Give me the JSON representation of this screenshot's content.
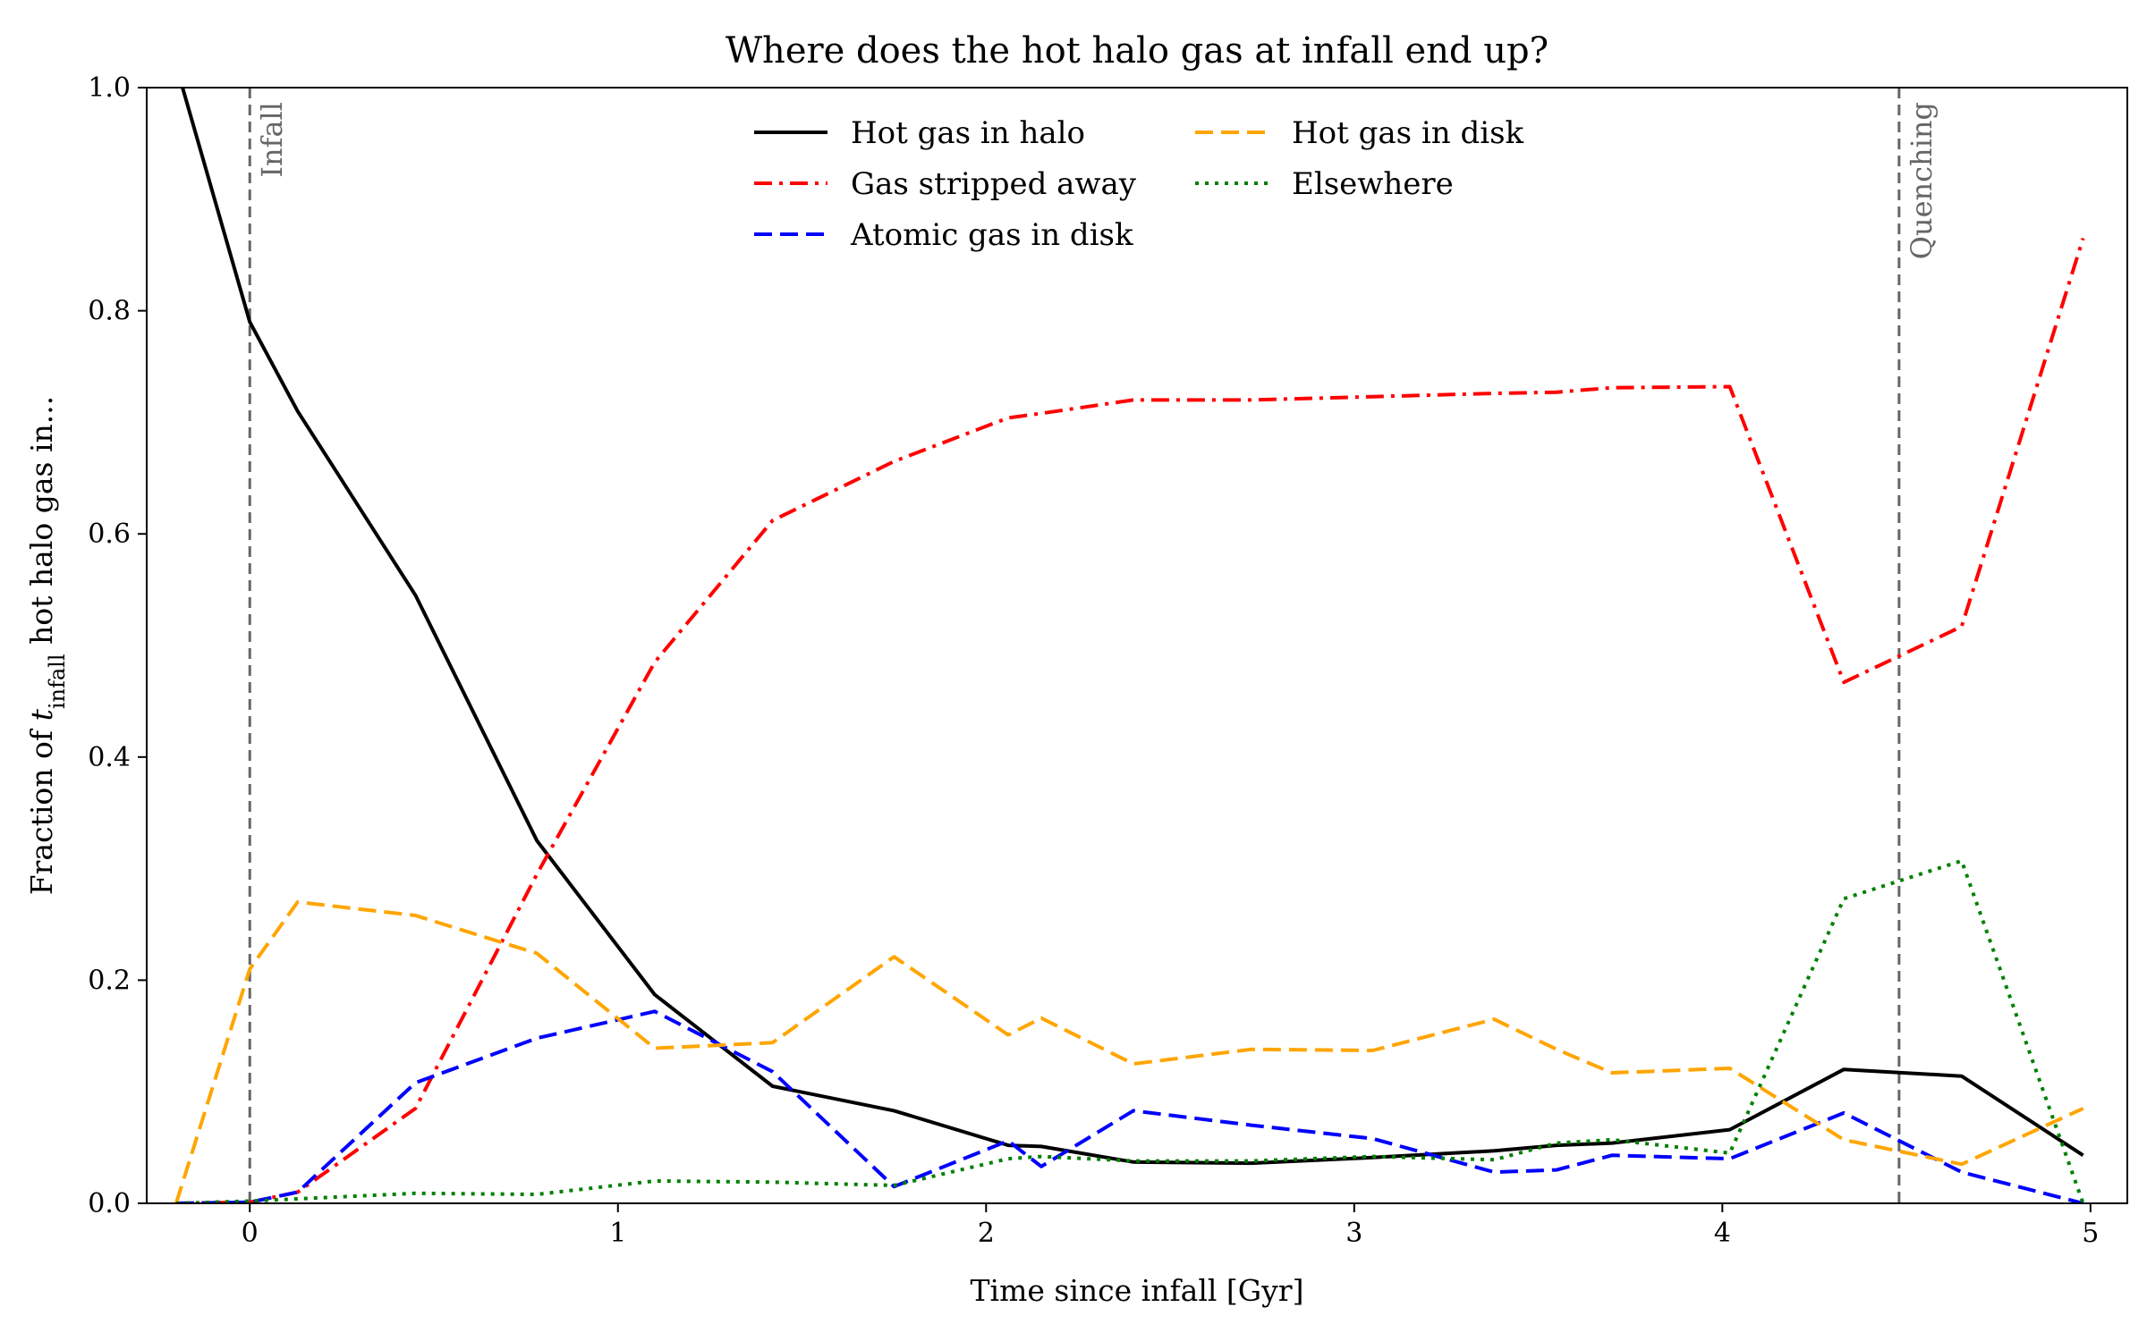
{
  "chart_data": {
    "type": "line",
    "title": "Where does the hot halo gas at infall end up?",
    "xlabel": "Time since infall [Gyr]",
    "ylabel_parts": {
      "prefix": "Fraction of ",
      "var": "t",
      "sub": "infall",
      "suffix": " hot halo gas in..."
    },
    "xlim": [
      -0.28,
      5.1
    ],
    "ylim": [
      0.0,
      1.0
    ],
    "xticks": [
      0,
      1,
      2,
      3,
      4,
      5
    ],
    "yticks": [
      0.0,
      0.2,
      0.4,
      0.6,
      0.8,
      1.0
    ],
    "xtick_labels": [
      "0",
      "1",
      "2",
      "3",
      "4",
      "5"
    ],
    "ytick_labels": [
      "0.0",
      "0.2",
      "0.4",
      "0.6",
      "0.8",
      "1.0"
    ],
    "grid": false,
    "legend": {
      "position": "top-center",
      "columns": 2
    },
    "vlines": [
      {
        "x": 0.0,
        "label": "Infall",
        "color": "#666666"
      },
      {
        "x": 4.48,
        "label": "Quenching",
        "color": "#666666"
      }
    ],
    "x": [
      -0.2,
      0.0,
      0.13,
      0.45,
      0.78,
      1.1,
      1.42,
      1.75,
      2.06,
      2.15,
      2.4,
      2.72,
      3.05,
      3.38,
      3.55,
      3.7,
      4.02,
      4.33,
      4.65,
      4.98
    ],
    "series": [
      {
        "name": "Hot gas in halo",
        "color": "#000000",
        "dash": "solid",
        "values": [
          1.02,
          0.79,
          0.71,
          0.545,
          0.325,
          0.187,
          0.105,
          0.083,
          0.052,
          0.051,
          0.037,
          0.036,
          0.041,
          0.047,
          0.052,
          0.054,
          0.066,
          0.12,
          0.114,
          0.043
        ]
      },
      {
        "name": "Gas stripped away",
        "color": "#ff0000",
        "dash": "dashdot",
        "values": [
          0.0,
          0.001,
          0.01,
          0.085,
          0.295,
          0.485,
          0.612,
          0.665,
          0.704,
          0.708,
          0.72,
          0.72,
          0.723,
          0.726,
          0.727,
          0.731,
          0.732,
          0.467,
          0.517,
          0.865
        ]
      },
      {
        "name": "Atomic gas in disk",
        "color": "#0000ff",
        "dash": "dashed",
        "values": [
          0.0,
          0.001,
          0.01,
          0.108,
          0.148,
          0.172,
          0.118,
          0.015,
          0.056,
          0.033,
          0.083,
          0.07,
          0.058,
          0.028,
          0.03,
          0.043,
          0.04,
          0.081,
          0.028,
          0.0
        ]
      },
      {
        "name": "Hot gas in disk",
        "color": "#ffa500",
        "dash": "dashed",
        "values": [
          0.0,
          0.21,
          0.27,
          0.258,
          0.224,
          0.139,
          0.144,
          0.221,
          0.151,
          0.166,
          0.125,
          0.138,
          0.137,
          0.165,
          0.138,
          0.117,
          0.121,
          0.057,
          0.035,
          0.085
        ]
      },
      {
        "name": "Elsewhere",
        "color": "#008000",
        "dash": "dotted",
        "values": [
          0.0,
          0.002,
          0.004,
          0.009,
          0.008,
          0.02,
          0.019,
          0.016,
          0.04,
          0.042,
          0.038,
          0.038,
          0.042,
          0.039,
          0.054,
          0.057,
          0.045,
          0.273,
          0.307,
          0.0
        ]
      }
    ]
  }
}
